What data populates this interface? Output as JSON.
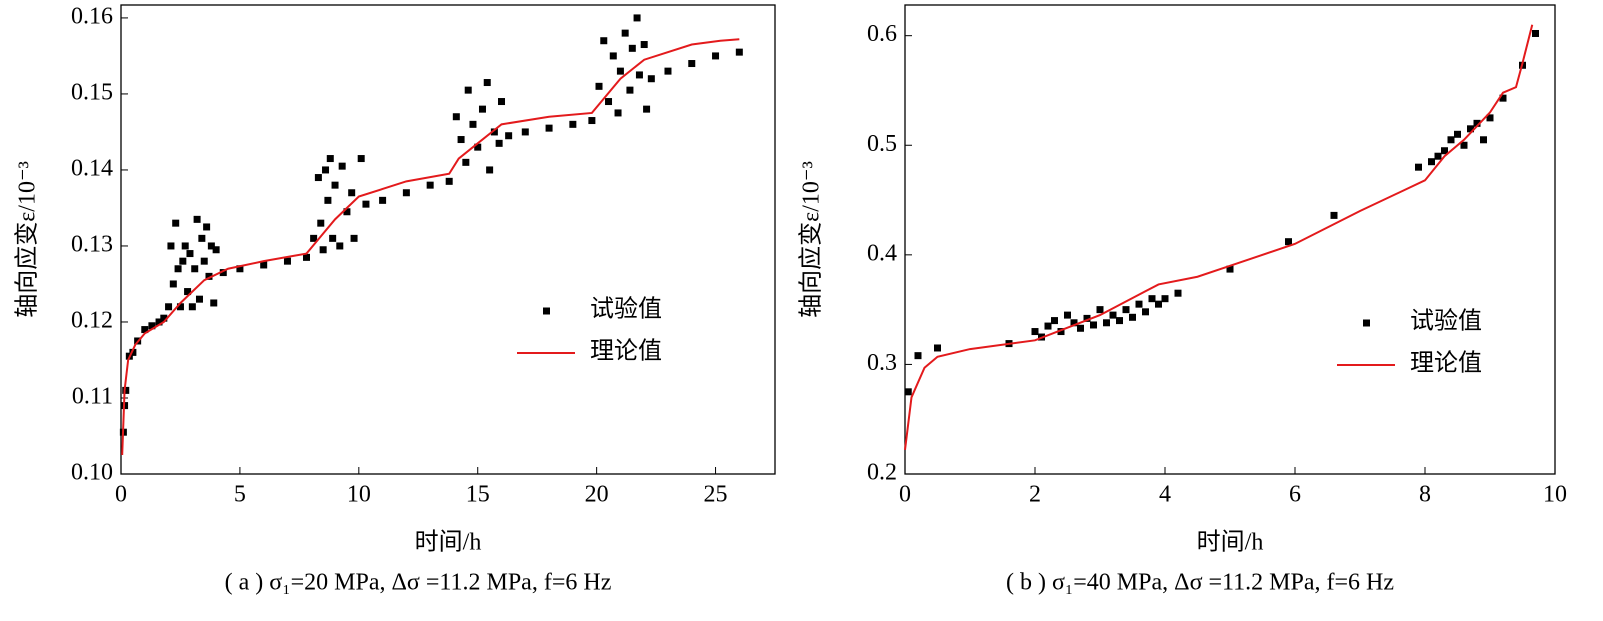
{
  "chart_data": [
    {
      "type": "scatter",
      "ylabel": "轴向应变ε/10⁻³",
      "xlabel": "时间/h",
      "caption": "( a ) σ₁=20 MPa, Δσ =11.2 MPa, f=6 Hz",
      "xlim": [
        0,
        27.5
      ],
      "ylim": [
        0.1,
        0.1617
      ],
      "xticks": [
        0,
        5,
        10,
        15,
        20,
        25
      ],
      "yticks": [
        {
          "value": 0.1,
          "label": "0.10"
        },
        0.11,
        0.12,
        0.13,
        0.14,
        0.15,
        0.16
      ],
      "legend": "right",
      "series": [
        {
          "name": "试验值",
          "type": "scatter",
          "color": "#000000",
          "x": [
            0.1,
            0.15,
            0.2,
            0.35,
            0.5,
            0.7,
            1.0,
            1.3,
            1.6,
            1.8,
            2.0,
            2.1,
            2.2,
            2.3,
            2.4,
            2.5,
            2.6,
            2.7,
            2.8,
            2.9,
            3.0,
            3.1,
            3.2,
            3.3,
            3.4,
            3.5,
            3.6,
            3.7,
            3.8,
            3.9,
            4.0,
            4.3,
            5,
            6,
            7,
            7.8,
            8.1,
            8.3,
            8.4,
            8.5,
            8.6,
            8.7,
            8.8,
            8.9,
            9.0,
            9.2,
            9.3,
            9.5,
            9.7,
            9.8,
            10.1,
            10.3,
            11,
            12,
            13,
            13.8,
            14.1,
            14.3,
            14.5,
            14.6,
            14.8,
            15.0,
            15.2,
            15.4,
            15.5,
            15.7,
            15.9,
            16.0,
            16.3,
            17,
            18,
            19,
            19.8,
            20.1,
            20.3,
            20.5,
            20.7,
            20.9,
            21.0,
            21.2,
            21.4,
            21.5,
            21.7,
            21.8,
            22.0,
            22.1,
            22.3,
            23,
            24,
            25,
            26
          ],
          "values": [
            0.1055,
            0.109,
            0.111,
            0.1155,
            0.116,
            0.1175,
            0.119,
            0.1195,
            0.12,
            0.1205,
            0.122,
            0.13,
            0.125,
            0.133,
            0.127,
            0.122,
            0.128,
            0.13,
            0.124,
            0.129,
            0.122,
            0.127,
            0.1335,
            0.123,
            0.131,
            0.128,
            0.1325,
            0.126,
            0.13,
            0.1225,
            0.1295,
            0.1265,
            0.127,
            0.1275,
            0.128,
            0.1285,
            0.131,
            0.139,
            0.133,
            0.1295,
            0.14,
            0.136,
            0.1415,
            0.131,
            0.138,
            0.13,
            0.1405,
            0.1345,
            0.137,
            0.131,
            0.1415,
            0.1355,
            0.136,
            0.137,
            0.138,
            0.1385,
            0.147,
            0.144,
            0.141,
            0.1505,
            0.146,
            0.143,
            0.148,
            0.1515,
            0.14,
            0.145,
            0.1435,
            0.149,
            0.1445,
            0.145,
            0.1455,
            0.146,
            0.1465,
            0.151,
            0.157,
            0.149,
            0.155,
            0.1475,
            0.153,
            0.158,
            0.1505,
            0.156,
            0.16,
            0.1525,
            0.1565,
            0.148,
            0.152,
            0.153,
            0.154,
            0.155,
            0.1555
          ]
        },
        {
          "name": "理论值",
          "type": "line",
          "color": "#e31a1c",
          "x": [
            0.05,
            0.15,
            0.3,
            0.6,
            1,
            1.8,
            2.5,
            3.5,
            4.5,
            6,
            7.8,
            8.2,
            9,
            10,
            11,
            12,
            13.8,
            14.2,
            15,
            16,
            18,
            19.8,
            20.2,
            21,
            22,
            24,
            25.2,
            26
          ],
          "values": [
            0.1025,
            0.111,
            0.115,
            0.117,
            0.1185,
            0.12,
            0.1225,
            0.1255,
            0.127,
            0.128,
            0.129,
            0.1305,
            0.1335,
            0.1365,
            0.1375,
            0.1385,
            0.1395,
            0.1415,
            0.1435,
            0.146,
            0.147,
            0.1475,
            0.149,
            0.152,
            0.1545,
            0.1565,
            0.157,
            0.1572
          ]
        }
      ]
    },
    {
      "type": "scatter",
      "ylabel": "轴向应变ε/10⁻³",
      "xlabel": "时间/h",
      "caption": "( b ) σ₁=40 MPa, Δσ =11.2 MPa, f=6 Hz",
      "xlim": [
        0,
        10
      ],
      "ylim": [
        0.2,
        0.628
      ],
      "xticks": [
        0,
        2,
        4,
        6,
        8,
        10
      ],
      "yticks": [
        0.2,
        0.3,
        0.4,
        0.5,
        0.6
      ],
      "legend": "right",
      "series": [
        {
          "name": "试验值",
          "type": "scatter",
          "color": "#000000",
          "x": [
            0.05,
            0.2,
            0.5,
            1.6,
            2.0,
            2.1,
            2.2,
            2.3,
            2.4,
            2.5,
            2.6,
            2.7,
            2.8,
            2.9,
            3.0,
            3.1,
            3.2,
            3.3,
            3.4,
            3.5,
            3.6,
            3.7,
            3.8,
            3.9,
            4.0,
            4.2,
            5.0,
            5.9,
            6.6,
            7.9,
            8.1,
            8.2,
            8.3,
            8.4,
            8.5,
            8.6,
            8.7,
            8.8,
            8.9,
            9.0,
            9.2,
            9.5,
            9.7
          ],
          "values": [
            0.275,
            0.308,
            0.315,
            0.319,
            0.33,
            0.325,
            0.335,
            0.34,
            0.33,
            0.345,
            0.338,
            0.333,
            0.342,
            0.336,
            0.35,
            0.338,
            0.345,
            0.34,
            0.35,
            0.343,
            0.355,
            0.348,
            0.36,
            0.355,
            0.36,
            0.365,
            0.387,
            0.412,
            0.436,
            0.48,
            0.485,
            0.49,
            0.495,
            0.505,
            0.51,
            0.5,
            0.515,
            0.52,
            0.505,
            0.525,
            0.543,
            0.573,
            0.602
          ]
        },
        {
          "name": "理论值",
          "type": "line",
          "color": "#e31a1c",
          "x": [
            0,
            0.1,
            0.3,
            0.5,
            1,
            2,
            3,
            3.9,
            4.5,
            5,
            6,
            7,
            8,
            8.3,
            8.6,
            9,
            9.2,
            9.4,
            9.5,
            9.65
          ],
          "values": [
            0.222,
            0.27,
            0.297,
            0.307,
            0.314,
            0.322,
            0.345,
            0.373,
            0.38,
            0.39,
            0.41,
            0.44,
            0.468,
            0.49,
            0.505,
            0.53,
            0.548,
            0.553,
            0.575,
            0.61
          ]
        }
      ]
    }
  ]
}
